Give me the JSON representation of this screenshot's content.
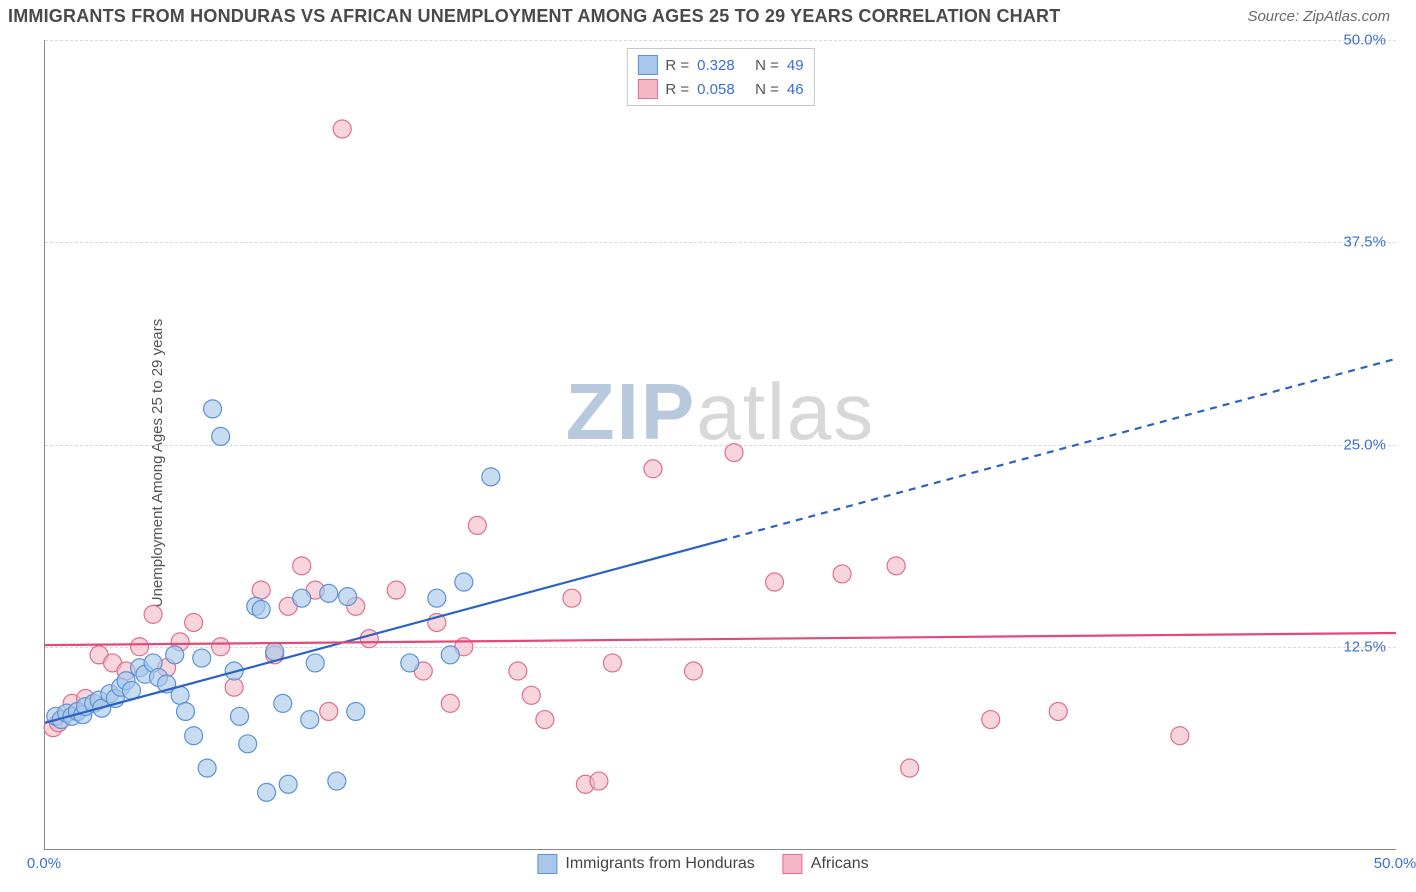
{
  "title": "IMMIGRANTS FROM HONDURAS VS AFRICAN UNEMPLOYMENT AMONG AGES 25 TO 29 YEARS CORRELATION CHART",
  "source": "Source: ZipAtlas.com",
  "ylabel": "Unemployment Among Ages 25 to 29 years",
  "watermark": {
    "text1": "ZIP",
    "text2": "atlas",
    "color1": "#b8c9de",
    "color2": "#d8d8d8"
  },
  "chart": {
    "type": "scatter",
    "background_color": "#ffffff",
    "grid_color": "#d9d9d9",
    "axis_color": "#888888",
    "xlim": [
      0,
      50
    ],
    "ylim": [
      0,
      50
    ],
    "yticks": [
      {
        "value": 12.5,
        "label": "12.5%"
      },
      {
        "value": 25.0,
        "label": "25.0%"
      },
      {
        "value": 37.5,
        "label": "37.5%"
      },
      {
        "value": 50.0,
        "label": "50.0%"
      }
    ],
    "xticks": [
      {
        "value": 0,
        "label": "0.0%"
      },
      {
        "value": 50,
        "label": "50.0%"
      }
    ],
    "tick_color": "#3b6fd6",
    "tick_fontsize": 15,
    "marker_radius": 9,
    "marker_stroke_width": 1.2,
    "series": [
      {
        "name": "Immigrants from Honduras",
        "fill": "#a9c7ea",
        "stroke": "#5d93d6",
        "fill_opacity": 0.65,
        "R": "0.328",
        "N": "49",
        "trend": {
          "color": "#2c62c2",
          "width": 2.2,
          "solid_until_x": 25,
          "y_at_0": 7.8,
          "slope": 0.45
        },
        "points": [
          [
            0.4,
            8.2
          ],
          [
            0.6,
            8.0
          ],
          [
            0.8,
            8.4
          ],
          [
            1.0,
            8.2
          ],
          [
            1.2,
            8.5
          ],
          [
            1.4,
            8.3
          ],
          [
            1.5,
            8.8
          ],
          [
            1.8,
            9.0
          ],
          [
            2.0,
            9.2
          ],
          [
            2.1,
            8.7
          ],
          [
            2.4,
            9.6
          ],
          [
            2.6,
            9.3
          ],
          [
            2.8,
            10.0
          ],
          [
            3.0,
            10.4
          ],
          [
            3.2,
            9.8
          ],
          [
            3.5,
            11.2
          ],
          [
            3.7,
            10.8
          ],
          [
            4.0,
            11.5
          ],
          [
            4.2,
            10.6
          ],
          [
            4.5,
            10.2
          ],
          [
            4.8,
            12.0
          ],
          [
            5.0,
            9.5
          ],
          [
            5.2,
            8.5
          ],
          [
            5.5,
            7.0
          ],
          [
            5.8,
            11.8
          ],
          [
            6.0,
            5.0
          ],
          [
            6.2,
            27.2
          ],
          [
            6.5,
            25.5
          ],
          [
            7.0,
            11.0
          ],
          [
            7.2,
            8.2
          ],
          [
            7.5,
            6.5
          ],
          [
            7.8,
            15.0
          ],
          [
            8.0,
            14.8
          ],
          [
            8.2,
            3.5
          ],
          [
            8.5,
            12.2
          ],
          [
            8.8,
            9.0
          ],
          [
            9.0,
            4.0
          ],
          [
            9.5,
            15.5
          ],
          [
            9.8,
            8.0
          ],
          [
            10.0,
            11.5
          ],
          [
            10.5,
            15.8
          ],
          [
            10.8,
            4.2
          ],
          [
            11.2,
            15.6
          ],
          [
            11.5,
            8.5
          ],
          [
            13.5,
            11.5
          ],
          [
            14.5,
            15.5
          ],
          [
            15.0,
            12.0
          ],
          [
            15.5,
            16.5
          ],
          [
            16.5,
            23.0
          ]
        ]
      },
      {
        "name": "Africans",
        "fill": "#f4b8c6",
        "stroke": "#e06f8e",
        "fill_opacity": 0.6,
        "R": "0.058",
        "N": "46",
        "trend": {
          "color": "#e24a78",
          "width": 2.2,
          "solid_until_x": 50,
          "y_at_0": 12.6,
          "slope": 0.015
        },
        "points": [
          [
            0.3,
            7.5
          ],
          [
            0.5,
            7.8
          ],
          [
            1.0,
            9.0
          ],
          [
            1.5,
            9.3
          ],
          [
            2.0,
            12.0
          ],
          [
            2.5,
            11.5
          ],
          [
            3.0,
            11.0
          ],
          [
            3.5,
            12.5
          ],
          [
            4.0,
            14.5
          ],
          [
            4.5,
            11.2
          ],
          [
            5.0,
            12.8
          ],
          [
            5.5,
            14.0
          ],
          [
            6.5,
            12.5
          ],
          [
            7.0,
            10.0
          ],
          [
            8.0,
            16.0
          ],
          [
            8.5,
            12.0
          ],
          [
            9.0,
            15.0
          ],
          [
            9.5,
            17.5
          ],
          [
            10.0,
            16.0
          ],
          [
            10.5,
            8.5
          ],
          [
            11.0,
            44.5
          ],
          [
            11.5,
            15.0
          ],
          [
            12.0,
            13.0
          ],
          [
            13.0,
            16.0
          ],
          [
            14.0,
            11.0
          ],
          [
            14.5,
            14.0
          ],
          [
            15.0,
            9.0
          ],
          [
            15.5,
            12.5
          ],
          [
            16.0,
            20.0
          ],
          [
            17.5,
            11.0
          ],
          [
            18.0,
            9.5
          ],
          [
            18.5,
            8.0
          ],
          [
            19.5,
            15.5
          ],
          [
            20.0,
            4.0
          ],
          [
            20.5,
            4.2
          ],
          [
            21.0,
            11.5
          ],
          [
            22.5,
            23.5
          ],
          [
            24.0,
            11.0
          ],
          [
            25.5,
            24.5
          ],
          [
            27.0,
            16.5
          ],
          [
            29.5,
            17.0
          ],
          [
            31.5,
            17.5
          ],
          [
            32.0,
            5.0
          ],
          [
            35.0,
            8.0
          ],
          [
            37.5,
            8.5
          ],
          [
            42.0,
            7.0
          ]
        ]
      }
    ],
    "legend_top": {
      "R_label": "R =",
      "N_label": "N =",
      "value_color": "#3b6fd6",
      "label_color": "#555555"
    },
    "legend_bottom": {
      "swatch_size": 20
    }
  }
}
